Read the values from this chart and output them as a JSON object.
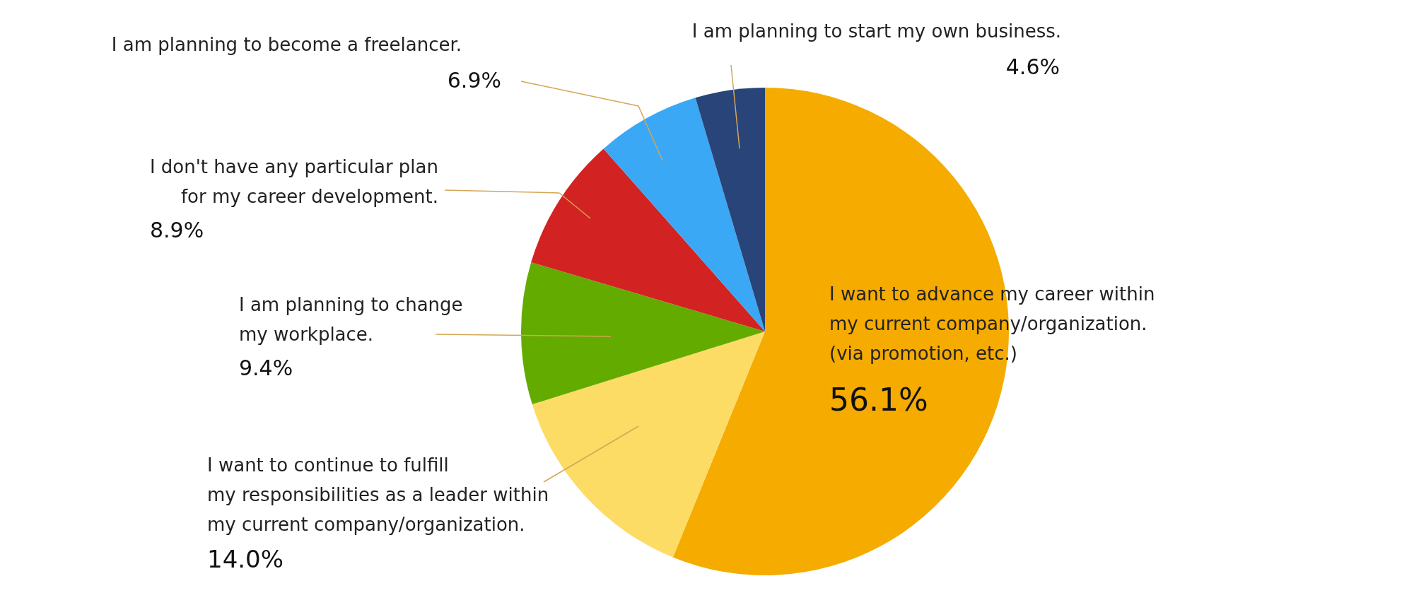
{
  "chart_data": {
    "type": "pie",
    "categories": [
      "I want to advance my career within\nmy current company/organization.\n (via promotion, etc.)",
      "I want to continue to fulfill\nmy responsibilities as a leader within\nmy current company/organization.",
      "I am planning to change\nmy workplace.",
      "I don't have any particular plan\nfor my career development.",
      "I am planning to become a freelancer.",
      "I am planning to start my own business."
    ],
    "values": [
      56.1,
      14.0,
      9.4,
      8.9,
      6.9,
      4.6
    ],
    "colors": [
      "#f5ab00",
      "#fddc65",
      "#64ab00",
      "#d22222",
      "#3aa8f5",
      "#284478"
    ],
    "value_labels": [
      "56.1%",
      "14.0%",
      "9.4%",
      "8.9%",
      "6.9%",
      "4.6%"
    ]
  }
}
